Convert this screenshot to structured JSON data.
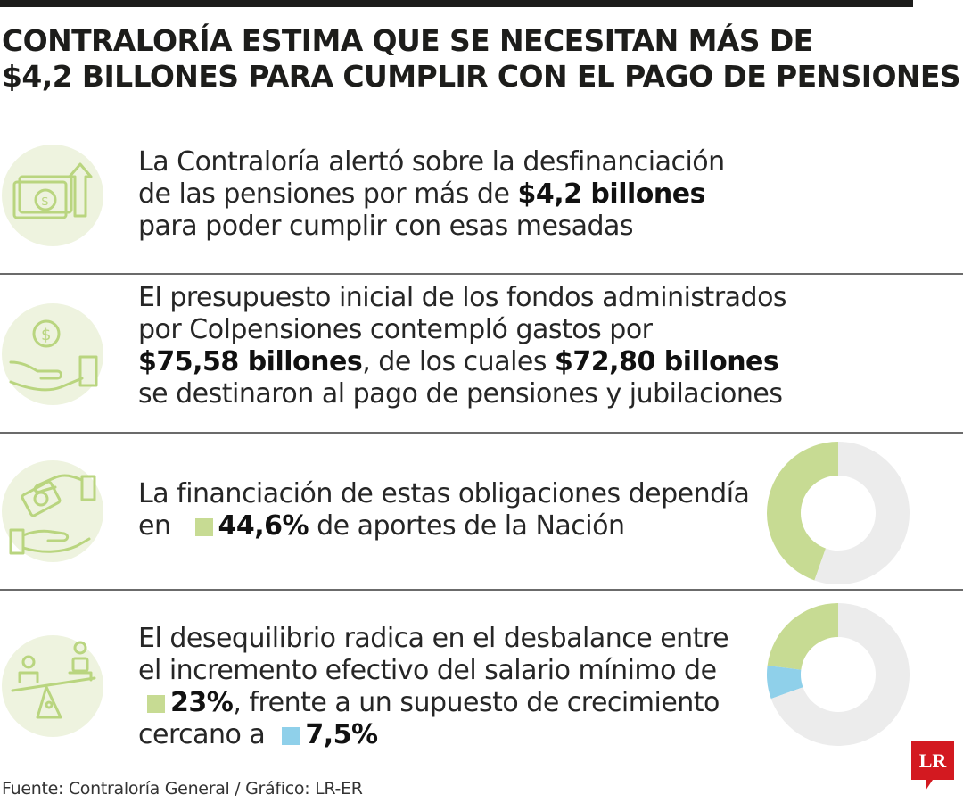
{
  "title": {
    "line1": "CONTRALORÍA ESTIMA QUE SE NECESITAN MÁS DE",
    "line2": "$4,2 BILLONES PARA CUMPLIR CON EL PAGO DE PENSIONES"
  },
  "rows": [
    {
      "icon": "money-arrow-up-icon",
      "lines": [
        {
          "t1": "La Contraloría alertó sobre la desfinanciación"
        },
        {
          "t1": "de las pensiones por más de ",
          "b1": "$4,2 billones"
        },
        {
          "t1": "para poder cumplir con esas mesadas"
        }
      ]
    },
    {
      "icon": "hand-coin-icon",
      "lines": [
        {
          "t1": "El presupuesto inicial de los fondos administrados"
        },
        {
          "t1": "por Colpensiones contempló gastos por"
        },
        {
          "b1": "$75,58 billones",
          "t1": ", de los cuales ",
          "b2": "$72,80 billones"
        },
        {
          "t1": "se destinaron al pago de pensiones y jubilaciones"
        }
      ]
    },
    {
      "icon": "hands-exchange-money-icon",
      "line1": "La financiación de estas obligaciones dependía",
      "line2_pre": "en ",
      "line2_bold": "44,6%",
      "line2_post": " de aportes de la Nación"
    },
    {
      "icon": "balance-scale-icon",
      "line1": "El desequilibrio radica en el desbalance entre",
      "line2": "el incremento efectivo del salario mínimo de",
      "line3_bold": "23%",
      "line3_post": ", frente a un supuesto de crecimiento",
      "line4_pre": "cercano a ",
      "line4_bold": "7,5%"
    }
  ],
  "colors": {
    "green": "#c7db93",
    "blue": "#8fd0ea",
    "gray": "#ececec",
    "icon_stroke": "#b9d57f",
    "logo_red": "#d31920"
  },
  "chart_data": [
    {
      "type": "pie",
      "donut": true,
      "slices": [
        {
          "label": "Aportes de la Nación",
          "value": 44.6,
          "color": "#c7db93"
        },
        {
          "label": "Resto",
          "value": 55.4,
          "color": "#ececec"
        }
      ]
    },
    {
      "type": "pie",
      "donut": true,
      "slices": [
        {
          "label": "Incremento efectivo del salario mínimo",
          "value": 23,
          "color": "#c7db93"
        },
        {
          "label": "Supuesto de crecimiento",
          "value": 7.5,
          "color": "#8fd0ea"
        },
        {
          "label": "Resto",
          "value": 69.5,
          "color": "#ececec"
        }
      ]
    }
  ],
  "source": "Fuente: Contraloría General / Gráfico: LR-ER",
  "logo": "LR"
}
